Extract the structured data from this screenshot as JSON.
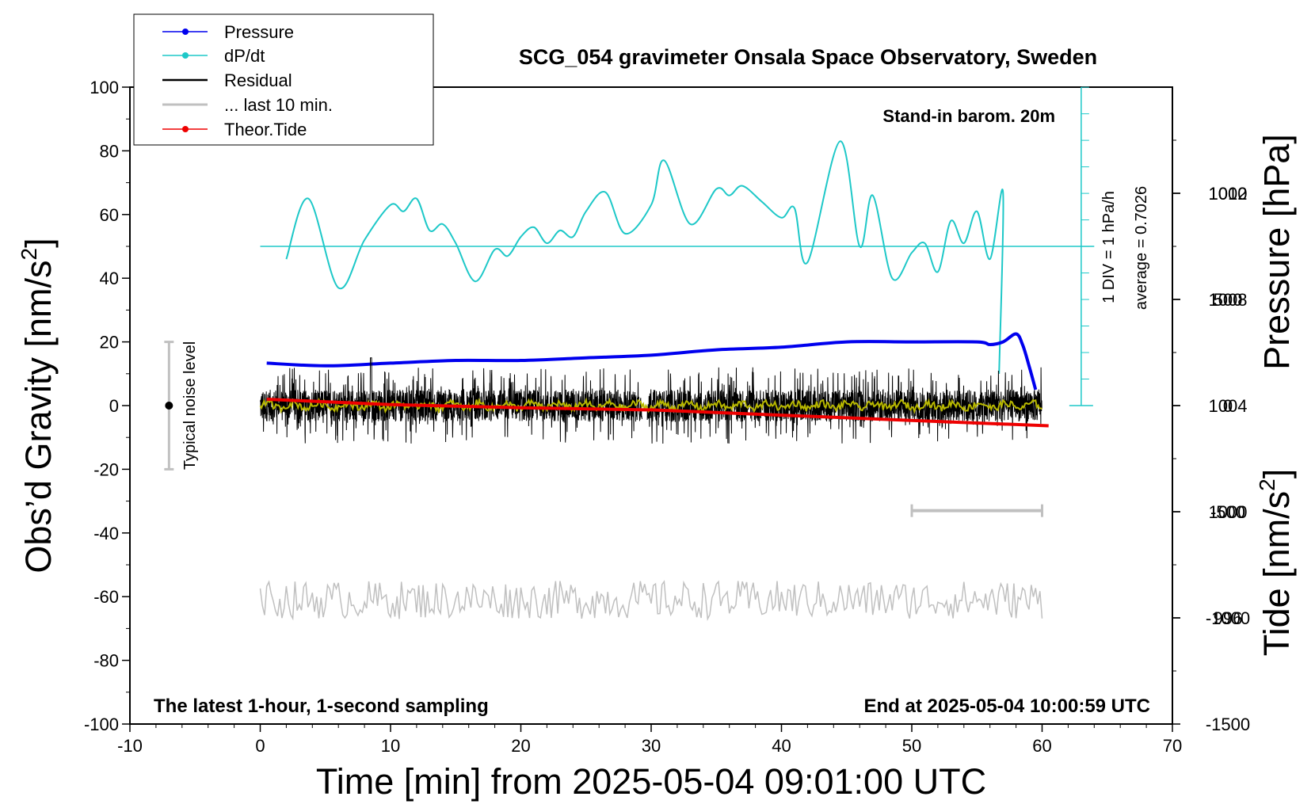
{
  "chart_data": {
    "type": "line",
    "title": "SCG_054 gravimeter Onsala Space Observatory, Sweden",
    "xlabel": "Time [min] from 2025-05-04 09:01:00 UTC",
    "ylabel_left_text": "Obs’d Gravity [nm/s",
    "ylabel_left_sup": "2",
    "ylabel_left_close": "]",
    "ylabel_right_pressure": "Pressure [hPa]",
    "ylabel_right_tide_text": "Tide [nm/s",
    "ylabel_right_tide_sup": "2",
    "ylabel_right_tide_close": "]",
    "xlim": [
      -10,
      70
    ],
    "ylim": [
      -100,
      100
    ],
    "pressure_lim": [
      992,
      1016
    ],
    "tide_lim": [
      -1500,
      1500
    ],
    "x_ticks": [
      "-10",
      "0",
      "10",
      "20",
      "30",
      "40",
      "50",
      "60",
      "70"
    ],
    "y_ticks": [
      "100",
      "80",
      "60",
      "40",
      "20",
      "0",
      "-20",
      "-40",
      "-60",
      "-80",
      "-100"
    ],
    "pressure_ticks": [
      "1012",
      "1008",
      "1004",
      "1000",
      "996"
    ],
    "tide_ticks": [
      "1000",
      "500",
      "0",
      "-500",
      "-1000",
      "-1500"
    ],
    "annotations": {
      "stand_in": "Stand-in barom. 20m",
      "div_scale": "1 DIV = 1 hPa/h",
      "average": "average = 0.7026",
      "noise": "Typical noise level",
      "latest": "The latest 1-hour, 1-second sampling",
      "end": "End at 2025-05-04 10:00:59 UTC"
    },
    "legend": {
      "position": "top-left",
      "entries": [
        "Pressure",
        "dP/dt",
        "Residual",
        "... last 10 min.",
        "Theor.Tide"
      ]
    },
    "colors": {
      "pressure": "#0000ee",
      "dpdt": "#1ec8c8",
      "residual": "#000000",
      "residual_smooth": "#b8b800",
      "last10": "#c0c0c0",
      "tide": "#ee0000",
      "noise_bar": "#c0c0c0"
    },
    "noise_level": {
      "x": -7,
      "center": 0,
      "range": [
        -20,
        20
      ]
    },
    "dpdt_baseline": 50,
    "dpdt_scale_bar": {
      "x": 63,
      "range": [
        0,
        100
      ]
    },
    "last10_bar": {
      "range": [
        50,
        60
      ],
      "y": -33
    },
    "series": [
      {
        "name": "Pressure",
        "axis": "pressure",
        "x": [
          0.5,
          5,
          10,
          15,
          20,
          25,
          30,
          35,
          40,
          45,
          50,
          55,
          56,
          57,
          58,
          58.5,
          59,
          59.5
        ],
        "values": [
          1005.6,
          1005.5,
          1005.6,
          1005.7,
          1005.7,
          1005.8,
          1005.9,
          1006.1,
          1006.2,
          1006.4,
          1006.4,
          1006.4,
          1006.3,
          1006.4,
          1006.7,
          1006.3,
          1005.5,
          1004.6
        ]
      },
      {
        "name": "dP/dt",
        "axis": "gravity",
        "x": [
          2,
          3.7,
          6,
          8,
          10,
          11,
          12,
          13,
          14,
          15,
          16.5,
          18,
          19,
          20,
          21,
          22,
          23,
          24,
          25,
          26.5,
          28,
          30,
          31,
          33,
          35,
          36,
          37,
          38.5,
          40,
          41,
          42,
          44.5,
          46,
          47,
          48.5,
          50,
          51,
          52,
          53,
          54,
          55,
          56,
          57,
          56.7
        ],
        "values": [
          46,
          65,
          37,
          52,
          63,
          61,
          65,
          55,
          57,
          51,
          39,
          49,
          47,
          53,
          56,
          51,
          55,
          53,
          61,
          67,
          54,
          63,
          77,
          57,
          68,
          66,
          69,
          64,
          59,
          62,
          45,
          83,
          50,
          66,
          40,
          48,
          51,
          42,
          58,
          51,
          61,
          46,
          67,
          10
        ]
      },
      {
        "name": "Residual",
        "axis": "gravity",
        "x_range": [
          0,
          60
        ],
        "gap": [
          29.3,
          29.7
        ],
        "typical_range": [
          -8,
          8
        ],
        "peak": {
          "x": 8.5,
          "value": 15
        }
      },
      {
        "name": "... last 10 min.",
        "axis": "gravity",
        "x_range": [
          0,
          60
        ],
        "mean": -61,
        "range": [
          -75,
          -54
        ]
      },
      {
        "name": "Theor.Tide",
        "axis": "tide",
        "x": [
          0.5,
          10,
          20,
          29.5,
          30,
          40,
          50,
          60.5
        ],
        "values": [
          30,
          5,
          -10,
          -20,
          -20,
          -45,
          -70,
          -95
        ]
      }
    ]
  }
}
